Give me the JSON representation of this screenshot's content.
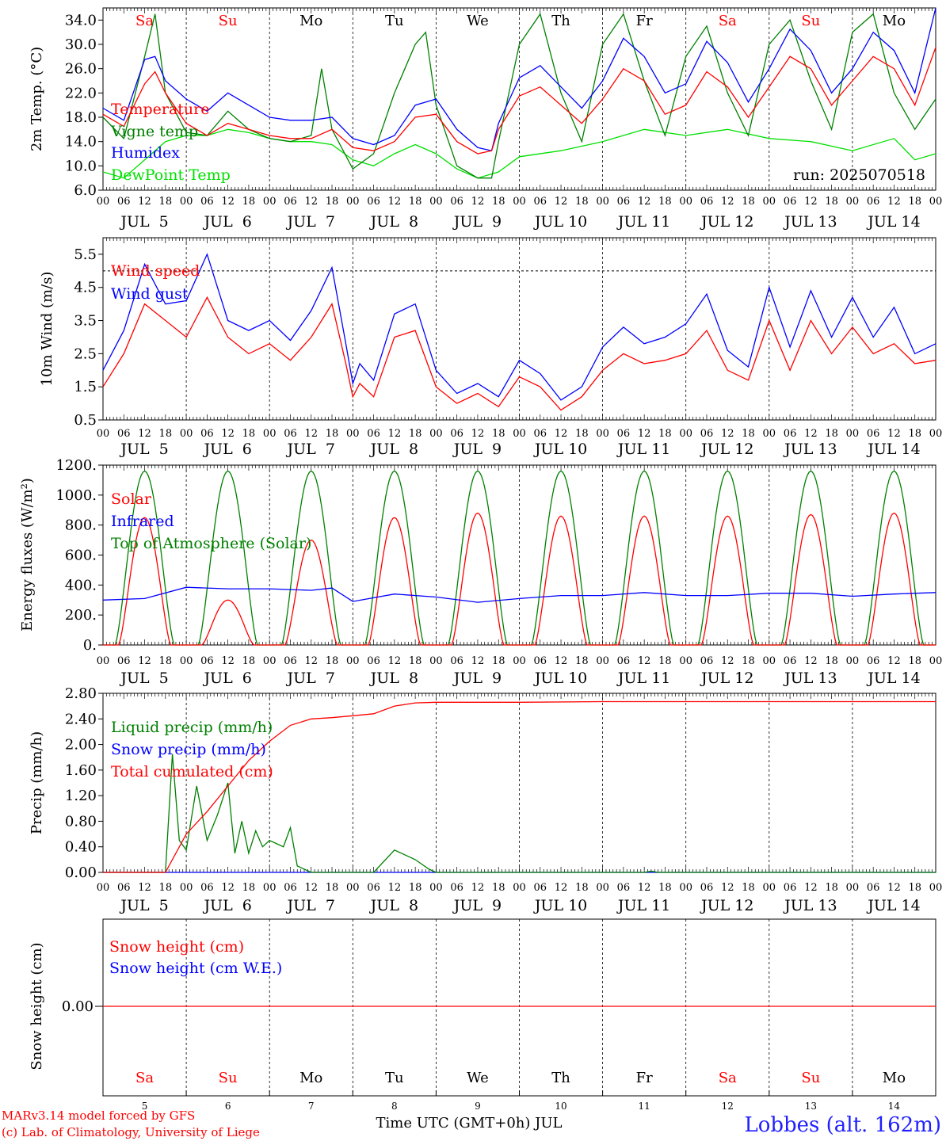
{
  "meta": {
    "run": "run: 2025070518",
    "location": "Lobbes (alt. 162m)",
    "credit_line1": "MARv3.14 model forced by GFS",
    "credit_line2": "(c) Lab. of Climatology, University of Liege",
    "xlabel": "Time UTC (GMT+0h) JUL"
  },
  "colors": {
    "red": "#ff0000",
    "green": "#008000",
    "blue": "#0000ff",
    "lime": "#00e000",
    "weekend": "#ff0000",
    "weekday": "#000000",
    "location": "#2020ff"
  },
  "days": [
    {
      "abbr": "Sa",
      "date": "JUL  5",
      "num": "5",
      "weekend": true
    },
    {
      "abbr": "Su",
      "date": "JUL  6",
      "num": "6",
      "weekend": true
    },
    {
      "abbr": "Mo",
      "date": "JUL  7",
      "num": "7",
      "weekend": false
    },
    {
      "abbr": "Tu",
      "date": "JUL  8",
      "num": "8",
      "weekend": false
    },
    {
      "abbr": "We",
      "date": "JUL  9",
      "num": "9",
      "weekend": false
    },
    {
      "abbr": "Th",
      "date": "JUL 10",
      "num": "10",
      "weekend": false
    },
    {
      "abbr": "Fr",
      "date": "JUL 11",
      "num": "11",
      "weekend": false
    },
    {
      "abbr": "Sa",
      "date": "JUL 12",
      "num": "12",
      "weekend": true
    },
    {
      "abbr": "Su",
      "date": "JUL 13",
      "num": "13",
      "weekend": true
    },
    {
      "abbr": "Mo",
      "date": "JUL 14",
      "num": "14",
      "weekend": false
    }
  ],
  "hour_labels": [
    "00",
    "06",
    "12",
    "18"
  ],
  "chart_data": [
    {
      "type": "line",
      "id": "temp",
      "ylabel": "2m Temp. (°C)",
      "ylim": [
        6,
        36
      ],
      "yticks": [
        "34.0",
        "30.0",
        "26.0",
        "22.0",
        "18.0",
        "14.0",
        "10.0",
        "6.0"
      ],
      "x_unit": "hours since JUL 5 00 UTC",
      "series": [
        {
          "name": "Temperature",
          "color": "red",
          "x": [
            0,
            6,
            12,
            15,
            18,
            24,
            30,
            36,
            42,
            48,
            54,
            60,
            66,
            72,
            78,
            84,
            90,
            96,
            102,
            108,
            112,
            114,
            120,
            126,
            132,
            138,
            144,
            150,
            156,
            162,
            168,
            174,
            180,
            186,
            192,
            198,
            204,
            210,
            216,
            222,
            228,
            234,
            240
          ],
          "y": [
            18.5,
            16.5,
            23.5,
            25.5,
            22,
            17,
            15,
            17,
            16,
            15,
            14.5,
            14.5,
            16,
            13,
            12.5,
            14,
            18,
            18.5,
            14,
            12,
            12.5,
            16,
            21.5,
            23,
            20,
            17,
            21,
            26,
            24,
            18.5,
            20,
            25.5,
            23,
            18,
            23,
            28,
            26,
            20,
            24,
            28,
            26,
            20,
            29.5
          ]
        },
        {
          "name": "Vigne temp",
          "color": "green",
          "x": [
            0,
            6,
            12,
            15,
            18,
            24,
            30,
            36,
            42,
            48,
            54,
            60,
            63,
            66,
            72,
            78,
            84,
            90,
            93,
            96,
            102,
            108,
            112,
            114,
            120,
            126,
            132,
            138,
            144,
            150,
            156,
            162,
            168,
            174,
            180,
            186,
            192,
            198,
            204,
            210,
            216,
            222,
            228,
            234,
            240
          ],
          "y": [
            18,
            14.5,
            28,
            35,
            22,
            15.5,
            15,
            19,
            16,
            14.5,
            14,
            15,
            26,
            16,
            9.5,
            12,
            22,
            30,
            32,
            20,
            10,
            8,
            8,
            14,
            30,
            35,
            22,
            14,
            30,
            35,
            24,
            15,
            28,
            33,
            22,
            15,
            30,
            34,
            24,
            16,
            32,
            35,
            22,
            16,
            21
          ]
        },
        {
          "name": "Humidex",
          "color": "blue",
          "x": [
            0,
            6,
            12,
            15,
            18,
            24,
            30,
            36,
            42,
            48,
            54,
            60,
            66,
            72,
            78,
            84,
            90,
            96,
            102,
            108,
            112,
            114,
            120,
            126,
            132,
            138,
            144,
            150,
            156,
            162,
            168,
            174,
            180,
            186,
            192,
            198,
            204,
            210,
            216,
            222,
            228,
            234,
            240
          ],
          "y": [
            19.5,
            17.5,
            27.5,
            28,
            24,
            21,
            19,
            22,
            20,
            18,
            17.5,
            17.5,
            18,
            14.5,
            13.5,
            15,
            20,
            21,
            16,
            13,
            12.5,
            17,
            24.5,
            26.5,
            23,
            19.5,
            24,
            31,
            28,
            22,
            23.5,
            30.5,
            27,
            20.5,
            26,
            32.5,
            29,
            22,
            26,
            32,
            29,
            22,
            36
          ]
        },
        {
          "name": "DewPoint Temp",
          "color": "lime",
          "x": [
            0,
            6,
            12,
            18,
            24,
            30,
            36,
            42,
            48,
            54,
            60,
            66,
            72,
            78,
            84,
            90,
            96,
            102,
            108,
            114,
            120,
            132,
            144,
            156,
            168,
            180,
            192,
            204,
            216,
            228,
            234,
            240
          ],
          "y": [
            9,
            8,
            11,
            14,
            15,
            15,
            16,
            15.5,
            14.5,
            14,
            14,
            13.5,
            11,
            10,
            12,
            13.5,
            12,
            9.5,
            8,
            9,
            11.5,
            12.5,
            14,
            16,
            15,
            16,
            14.5,
            14,
            12.5,
            14.5,
            11,
            12
          ]
        }
      ]
    },
    {
      "type": "line",
      "id": "wind",
      "ylabel": "10m Wind (m/s)",
      "ylim": [
        0.5,
        6
      ],
      "yticks": [
        "5.5",
        "4.5",
        "3.5",
        "2.5",
        "1.5",
        "0.5"
      ],
      "reference_line": 5.0,
      "x_unit": "hours since JUL 5 00 UTC",
      "series": [
        {
          "name": "Wind speed",
          "color": "red",
          "x": [
            0,
            6,
            12,
            18,
            24,
            30,
            36,
            42,
            48,
            54,
            60,
            66,
            70,
            72,
            74,
            78,
            84,
            90,
            96,
            102,
            108,
            114,
            120,
            126,
            132,
            138,
            144,
            150,
            156,
            162,
            168,
            174,
            180,
            186,
            192,
            198,
            204,
            210,
            216,
            222,
            228,
            234,
            240
          ],
          "y": [
            1.5,
            2.5,
            4,
            3.5,
            3,
            4.2,
            3,
            2.5,
            2.8,
            2.3,
            3,
            4,
            2.2,
            1.2,
            1.6,
            1.2,
            3,
            3.2,
            1.5,
            1,
            1.3,
            0.9,
            1.8,
            1.5,
            0.8,
            1.2,
            2,
            2.5,
            2.2,
            2.3,
            2.5,
            3.2,
            2,
            1.7,
            3.5,
            2,
            3.5,
            2.5,
            3.3,
            2.5,
            2.8,
            2.2,
            2.3
          ]
        },
        {
          "name": "Wind gust",
          "color": "blue",
          "x": [
            0,
            6,
            12,
            18,
            24,
            30,
            36,
            42,
            48,
            54,
            60,
            66,
            70,
            72,
            74,
            78,
            84,
            90,
            96,
            102,
            108,
            114,
            120,
            126,
            132,
            138,
            144,
            150,
            156,
            162,
            168,
            174,
            180,
            186,
            192,
            198,
            204,
            210,
            216,
            222,
            228,
            234,
            240
          ],
          "y": [
            2,
            3.2,
            5.2,
            4,
            4.1,
            5.5,
            3.5,
            3.2,
            3.5,
            2.9,
            3.8,
            5.1,
            2.8,
            1.6,
            2.2,
            1.7,
            3.7,
            4,
            2,
            1.3,
            1.6,
            1.2,
            2.3,
            1.9,
            1.1,
            1.5,
            2.7,
            3.3,
            2.8,
            3,
            3.4,
            4.3,
            2.6,
            2.1,
            4.5,
            2.7,
            4.4,
            3,
            4.2,
            3,
            3.9,
            2.5,
            2.8
          ]
        }
      ]
    },
    {
      "type": "line",
      "id": "energy",
      "ylabel": "Energy fluxes (W/m²)",
      "ylim": [
        0,
        1200
      ],
      "yticks": [
        "1200.",
        "1000.",
        "800.",
        "600.",
        "400.",
        "200.",
        "0."
      ],
      "x_unit": "hours since JUL 5 00 UTC",
      "series": [
        {
          "name": "Solar",
          "color": "red",
          "daily_peak_at_12h": [
            850,
            300,
            700,
            850,
            880,
            860,
            860,
            860,
            870,
            880
          ],
          "daily_shape": "diurnal"
        },
        {
          "name": "Infrared",
          "color": "blue",
          "x": [
            0,
            12,
            24,
            36,
            48,
            60,
            66,
            72,
            84,
            96,
            108,
            120,
            132,
            144,
            156,
            168,
            180,
            192,
            204,
            216,
            228,
            240
          ],
          "y": [
            300,
            310,
            385,
            375,
            375,
            365,
            380,
            290,
            340,
            320,
            285,
            310,
            330,
            330,
            350,
            330,
            330,
            345,
            345,
            325,
            340,
            350
          ]
        },
        {
          "name": "Top of Atmosphere (Solar)",
          "color": "green",
          "daily_peak_at_12h": [
            1160,
            1160,
            1160,
            1160,
            1160,
            1160,
            1160,
            1160,
            1160,
            1160
          ],
          "daily_shape": "diurnal"
        }
      ]
    },
    {
      "type": "line",
      "id": "precip",
      "ylabel": "Precip (mm/h)",
      "ylim": [
        0,
        2.8
      ],
      "yticks": [
        "2.80",
        "2.40",
        "2.00",
        "1.60",
        "1.20",
        "0.80",
        "0.40",
        "0.00"
      ],
      "x_unit": "hours since JUL 5 00 UTC",
      "series": [
        {
          "name": "Liquid precip (mm/h)",
          "color": "green",
          "x": [
            0,
            18,
            20,
            22,
            24,
            27,
            30,
            33,
            36,
            38,
            40,
            42,
            44,
            46,
            48,
            52,
            54,
            56,
            60,
            66,
            72,
            78,
            84,
            90,
            94,
            96,
            120,
            144,
            156,
            158,
            160,
            240
          ],
          "y": [
            0,
            0,
            1.85,
            0.5,
            0.35,
            1.35,
            0.5,
            0.9,
            1.4,
            0.3,
            0.8,
            0.3,
            0.65,
            0.4,
            0.5,
            0.4,
            0.7,
            0.1,
            0,
            0,
            0,
            0,
            0.35,
            0.2,
            0.05,
            0,
            0,
            0,
            0,
            0.02,
            0,
            0
          ]
        },
        {
          "name": "Snow precip (mm/h)",
          "color": "blue",
          "x": [
            0,
            240
          ],
          "y": [
            0,
            0
          ]
        },
        {
          "name": "Total cumulated (cm)",
          "color": "red",
          "x": [
            0,
            18,
            24,
            30,
            36,
            42,
            48,
            54,
            60,
            66,
            72,
            78,
            84,
            90,
            96,
            120,
            144,
            240
          ],
          "y": [
            0,
            0,
            0.6,
            0.95,
            1.35,
            1.75,
            2.05,
            2.3,
            2.4,
            2.42,
            2.45,
            2.48,
            2.6,
            2.65,
            2.66,
            2.66,
            2.67,
            2.67
          ]
        }
      ]
    },
    {
      "type": "line",
      "id": "snow",
      "ylabel": "Snow height (cm)",
      "ytick": "0.00",
      "x_unit": "hours since JUL 5 00 UTC",
      "series": [
        {
          "name": "Snow height (cm)",
          "color": "red",
          "x": [
            0,
            240
          ],
          "y": [
            0,
            0
          ]
        },
        {
          "name": "Snow height (cm W.E.)",
          "color": "blue",
          "x": [
            0,
            240
          ],
          "y": [
            0,
            0
          ]
        }
      ]
    }
  ]
}
